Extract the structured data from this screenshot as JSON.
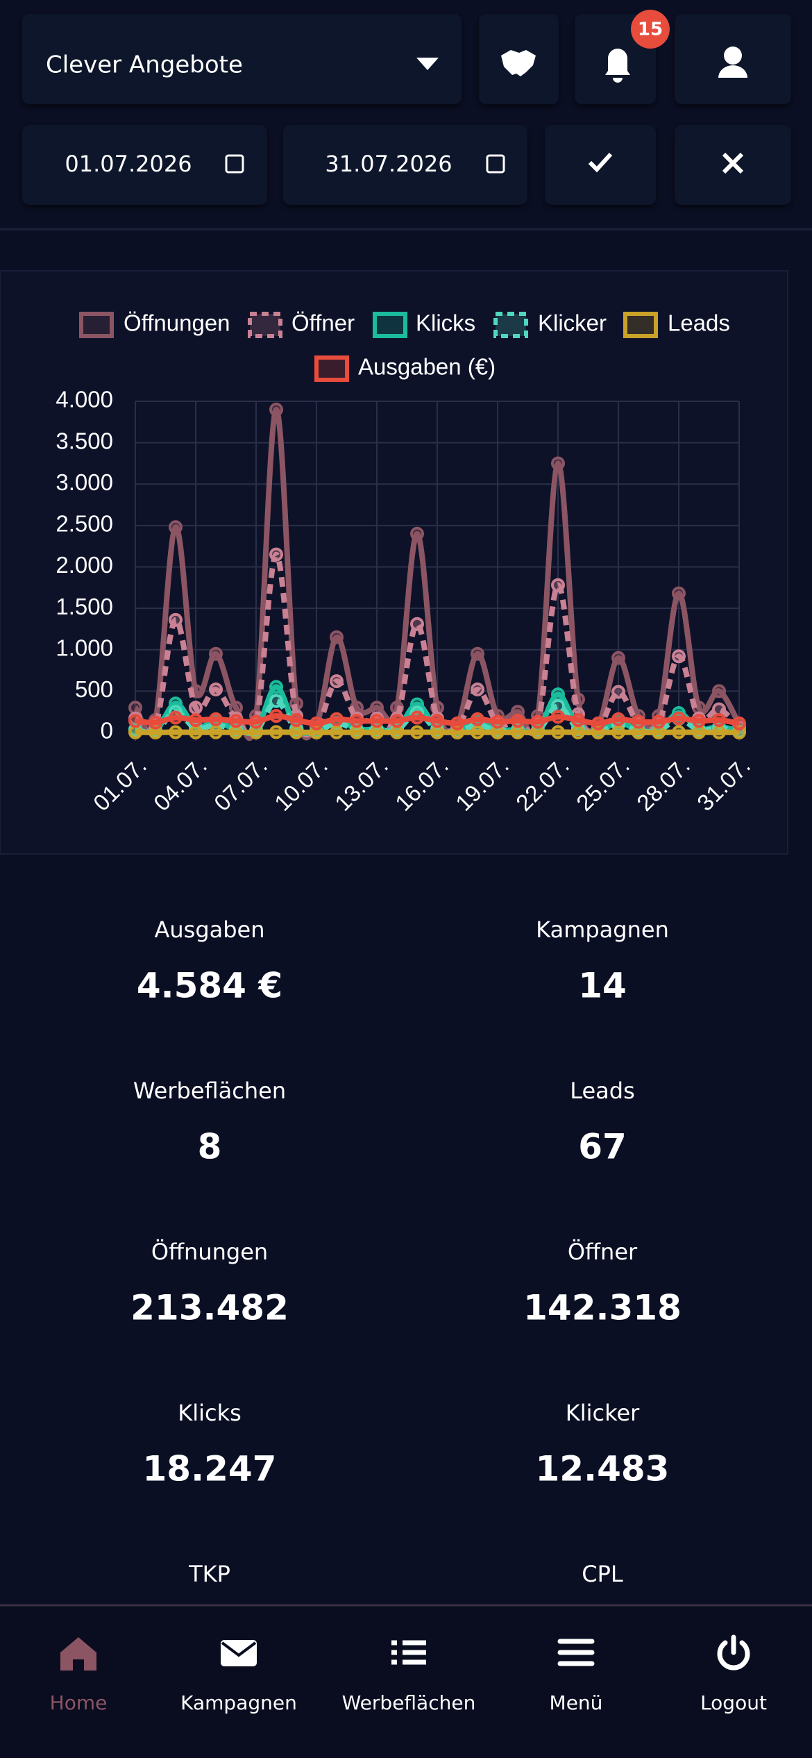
{
  "header": {
    "account": "Clever Angebote",
    "notifications": "15",
    "date_from": "01.07.2026",
    "date_to": "31.07.2026"
  },
  "chart_data": {
    "type": "line",
    "categories": [
      "01.07.",
      null,
      null,
      "04.07.",
      null,
      null,
      "07.07.",
      null,
      null,
      "10.07.",
      null,
      null,
      "13.07.",
      null,
      null,
      "16.07.",
      null,
      null,
      "19.07.",
      null,
      null,
      "22.07.",
      null,
      null,
      "25.07.",
      null,
      null,
      "28.07.",
      null,
      null,
      "31.07."
    ],
    "series": [
      {
        "name": "Öffnungen",
        "color": "#8c5563",
        "dashed": false,
        "values": [
          300,
          150,
          2480,
          500,
          950,
          300,
          200,
          3900,
          350,
          100,
          1150,
          300,
          300,
          300,
          2400,
          300,
          100,
          950,
          200,
          250,
          200,
          3250,
          400,
          100,
          900,
          200,
          200,
          1680,
          300,
          500,
          100
        ]
      },
      {
        "name": "Öffner",
        "color": "#c98193",
        "dashed": true,
        "values": [
          170,
          80,
          1360,
          300,
          520,
          170,
          110,
          2150,
          200,
          60,
          620,
          170,
          170,
          170,
          1310,
          170,
          60,
          520,
          110,
          140,
          110,
          1780,
          220,
          60,
          490,
          110,
          110,
          920,
          170,
          280,
          60
        ]
      },
      {
        "name": "Klicks",
        "color": "#1abc9c",
        "dashed": false,
        "values": [
          40,
          20,
          350,
          70,
          130,
          40,
          30,
          550,
          50,
          15,
          160,
          40,
          40,
          40,
          340,
          40,
          15,
          130,
          30,
          35,
          30,
          460,
          55,
          15,
          125,
          30,
          30,
          235,
          40,
          70,
          15
        ]
      },
      {
        "name": "Klicker",
        "color": "#4fd8bd",
        "dashed": true,
        "values": [
          30,
          15,
          250,
          50,
          90,
          30,
          20,
          380,
          35,
          10,
          115,
          30,
          30,
          30,
          240,
          30,
          10,
          90,
          20,
          25,
          20,
          320,
          40,
          10,
          90,
          20,
          20,
          165,
          30,
          50,
          10
        ]
      },
      {
        "name": "Leads",
        "color": "#c9a227",
        "dashed": false,
        "values": [
          2,
          1,
          4,
          2,
          3,
          2,
          1,
          5,
          2,
          1,
          3,
          2,
          2,
          2,
          4,
          2,
          1,
          3,
          1,
          2,
          1,
          5,
          2,
          1,
          3,
          1,
          1,
          4,
          2,
          2,
          1
        ]
      },
      {
        "name": "Ausgaben (€)",
        "color": "#e74c3c",
        "dashed": false,
        "values": [
          140,
          120,
          180,
          150,
          160,
          140,
          130,
          200,
          150,
          110,
          160,
          140,
          140,
          140,
          180,
          140,
          110,
          160,
          130,
          140,
          130,
          190,
          150,
          110,
          160,
          130,
          130,
          170,
          140,
          150,
          110
        ]
      }
    ],
    "ylim": [
      0,
      4000
    ],
    "yticks": [
      0,
      500,
      {
        "value": 1000,
        "label": "1.000"
      },
      {
        "value": 1500,
        "label": "1.500"
      },
      {
        "value": 2000,
        "label": "2.000"
      },
      {
        "value": 2500,
        "label": "2.500"
      },
      {
        "value": 3000,
        "label": "3.000"
      },
      {
        "value": 3500,
        "label": "3.500"
      },
      {
        "value": 4000,
        "label": "4.000"
      }
    ],
    "grid": true
  },
  "stats": [
    {
      "label": "Ausgaben",
      "value": "4.584 €"
    },
    {
      "label": "Kampagnen",
      "value": "14"
    },
    {
      "label": "Werbeflächen",
      "value": "8"
    },
    {
      "label": "Leads",
      "value": "67"
    },
    {
      "label": "Öffnungen",
      "value": "213.482"
    },
    {
      "label": "Öffner",
      "value": "142.318"
    },
    {
      "label": "Klicks",
      "value": "18.247"
    },
    {
      "label": "Klicker",
      "value": "12.483"
    },
    {
      "label": "TKP"
    },
    {
      "label": "CPL"
    }
  ],
  "nav": [
    "Home",
    "Kampagnen",
    "Werbeflächen",
    "Menü",
    "Logout"
  ]
}
